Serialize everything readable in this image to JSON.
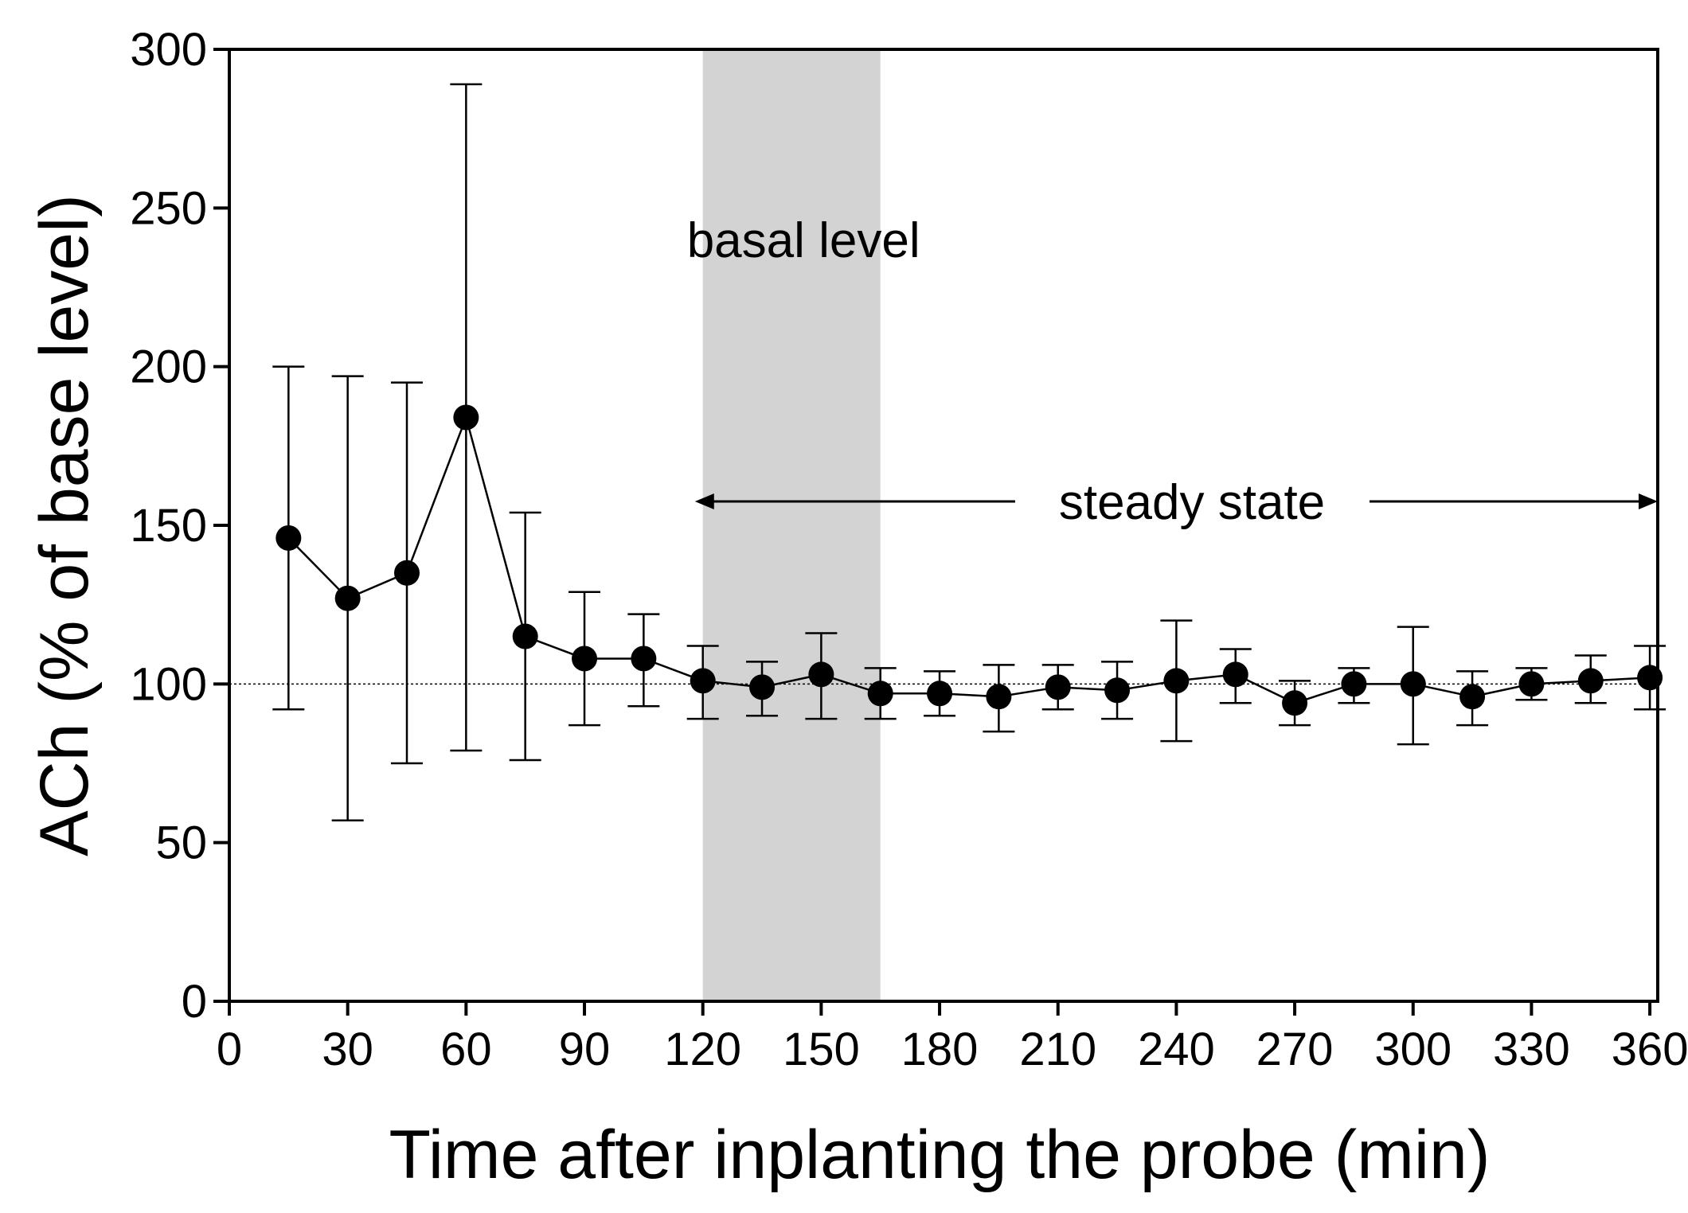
{
  "chart_data": {
    "type": "line",
    "xlabel": "Time after inplanting the probe (min)",
    "ylabel": "ACh (% of base level)",
    "xlim": [
      0,
      362
    ],
    "ylim": [
      0,
      300
    ],
    "x_ticks": [
      "0",
      "30",
      "60",
      "90",
      "120",
      "150",
      "180",
      "210",
      "240",
      "270",
      "300",
      "330",
      "360"
    ],
    "y_ticks": [
      "0",
      "50",
      "100",
      "150",
      "200",
      "250",
      "300"
    ],
    "grid": false,
    "reference_line": {
      "y": 100,
      "style": "dotted"
    },
    "shaded_region": {
      "x_start": 120,
      "x_end": 165,
      "label": "basal level",
      "color": "#d3d3d3"
    },
    "range_annotation": {
      "x_start": 118,
      "x_end": 362,
      "label": "steady state"
    },
    "series": [
      {
        "color": "#000000",
        "marker": "filled-circle",
        "points": [
          {
            "x": 15,
            "y": 146,
            "err_low": 92,
            "err_high": 200
          },
          {
            "x": 30,
            "y": 127,
            "err_low": 57,
            "err_high": 197
          },
          {
            "x": 45,
            "y": 135,
            "err_low": 75,
            "err_high": 195
          },
          {
            "x": 60,
            "y": 184,
            "err_low": 79,
            "err_high": 289
          },
          {
            "x": 75,
            "y": 115,
            "err_low": 76,
            "err_high": 154
          },
          {
            "x": 90,
            "y": 108,
            "err_low": 87,
            "err_high": 129
          },
          {
            "x": 105,
            "y": 108,
            "err_low": 93,
            "err_high": 122
          },
          {
            "x": 120,
            "y": 101,
            "err_low": 89,
            "err_high": 112
          },
          {
            "x": 135,
            "y": 99,
            "err_low": 90,
            "err_high": 107
          },
          {
            "x": 150,
            "y": 103,
            "err_low": 89,
            "err_high": 116
          },
          {
            "x": 165,
            "y": 97,
            "err_low": 89,
            "err_high": 105
          },
          {
            "x": 180,
            "y": 97,
            "err_low": 90,
            "err_high": 104
          },
          {
            "x": 195,
            "y": 96,
            "err_low": 85,
            "err_high": 106
          },
          {
            "x": 210,
            "y": 99,
            "err_low": 92,
            "err_high": 106
          },
          {
            "x": 225,
            "y": 98,
            "err_low": 89,
            "err_high": 107
          },
          {
            "x": 240,
            "y": 101,
            "err_low": 82,
            "err_high": 120
          },
          {
            "x": 255,
            "y": 103,
            "err_low": 94,
            "err_high": 111
          },
          {
            "x": 270,
            "y": 94,
            "err_low": 87,
            "err_high": 101
          },
          {
            "x": 285,
            "y": 100,
            "err_low": 94,
            "err_high": 105
          },
          {
            "x": 300,
            "y": 100,
            "err_low": 81,
            "err_high": 118
          },
          {
            "x": 315,
            "y": 96,
            "err_low": 87,
            "err_high": 104
          },
          {
            "x": 330,
            "y": 100,
            "err_low": 95,
            "err_high": 105
          },
          {
            "x": 345,
            "y": 101,
            "err_low": 94,
            "err_high": 109
          },
          {
            "x": 360,
            "y": 102,
            "err_low": 92,
            "err_high": 112
          }
        ]
      }
    ]
  }
}
